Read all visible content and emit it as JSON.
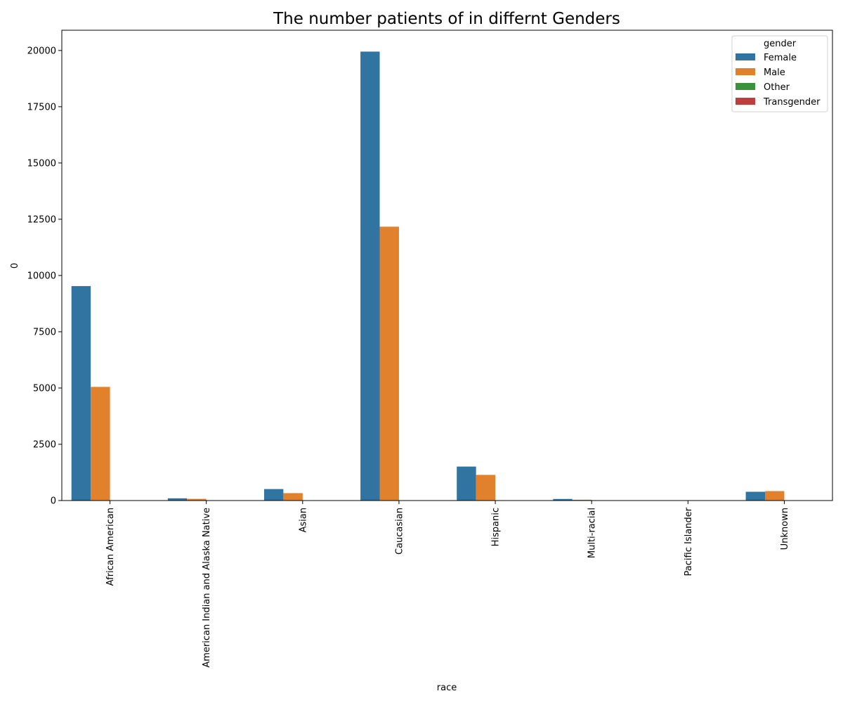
{
  "chart_data": {
    "type": "bar",
    "title": "The number patients of in differnt Genders",
    "xlabel": "race",
    "ylabel": "0",
    "ylim": [
      0,
      20900
    ],
    "yticks": [
      0,
      2500,
      5000,
      7500,
      10000,
      12500,
      15000,
      17500,
      20000
    ],
    "grid": false,
    "legend": {
      "title": "gender",
      "placement": "top-right"
    },
    "categories": [
      "African American",
      "American Indian and Alaska Native",
      "Asian",
      "Caucasian",
      "Hispanic",
      "Multi-racial",
      "Pacific Islander",
      "Unknown"
    ],
    "series": [
      {
        "name": "Female",
        "color": "#3274a1",
        "values": [
          9530,
          100,
          510,
          19950,
          1510,
          70,
          0,
          390
        ]
      },
      {
        "name": "Male",
        "color": "#e1812c",
        "values": [
          5050,
          75,
          330,
          12170,
          1140,
          35,
          0,
          420
        ]
      },
      {
        "name": "Other",
        "color": "#3a923a",
        "values": [
          0,
          0,
          0,
          0,
          0,
          0,
          0,
          0
        ]
      },
      {
        "name": "Transgender",
        "color": "#c03d3e",
        "values": [
          0,
          0,
          0,
          0,
          0,
          0,
          0,
          0
        ]
      }
    ]
  }
}
